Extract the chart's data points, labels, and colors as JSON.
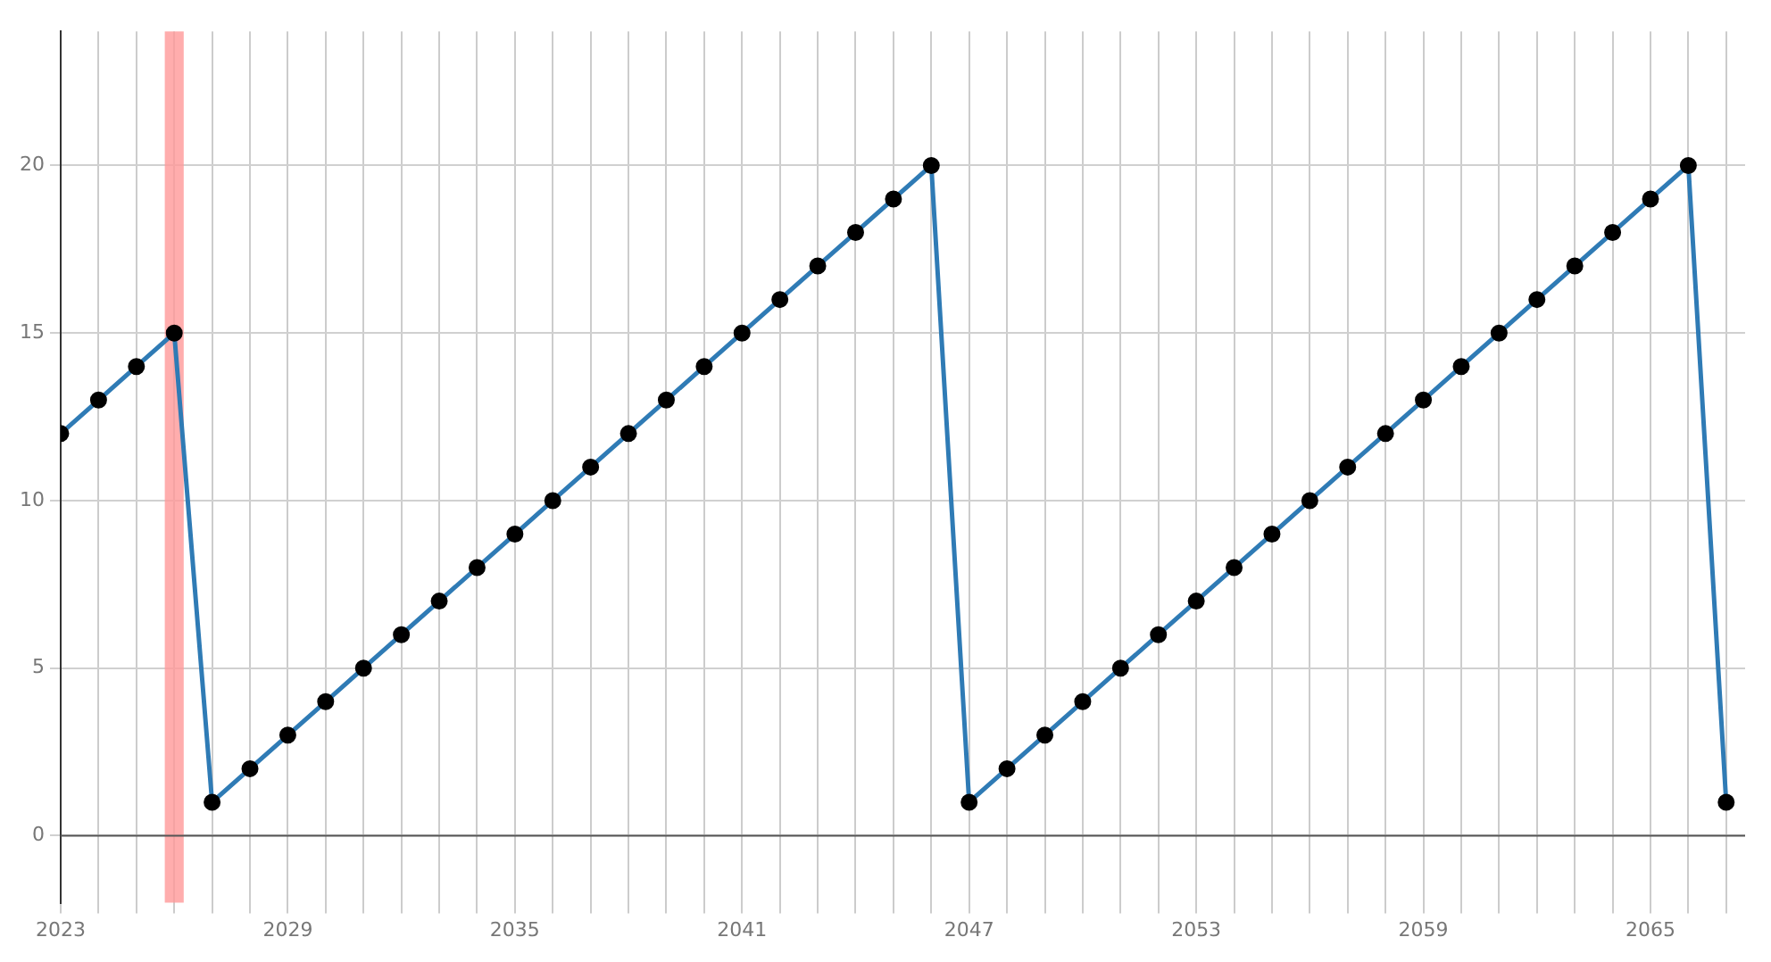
{
  "chart_data": {
    "type": "line",
    "x": [
      2023,
      2024,
      2025,
      2026,
      2027,
      2028,
      2029,
      2030,
      2031,
      2032,
      2033,
      2034,
      2035,
      2036,
      2037,
      2038,
      2039,
      2040,
      2041,
      2042,
      2043,
      2044,
      2045,
      2046,
      2047,
      2048,
      2049,
      2050,
      2051,
      2052,
      2053,
      2054,
      2055,
      2056,
      2057,
      2058,
      2059,
      2060,
      2061,
      2062,
      2063,
      2064,
      2065,
      2066,
      2067
    ],
    "series": [
      {
        "color": "#2f7bb5",
        "values": [
          12,
          13,
          14,
          15,
          1,
          2,
          3,
          4,
          5,
          6,
          7,
          8,
          9,
          10,
          11,
          12,
          13,
          14,
          15,
          16,
          17,
          18,
          19,
          20,
          1,
          2,
          3,
          4,
          5,
          6,
          7,
          8,
          9,
          10,
          11,
          12,
          13,
          14,
          15,
          16,
          17,
          18,
          19,
          20,
          1
        ]
      }
    ],
    "xlim": [
      2023,
      2067.5
    ],
    "xticks": [
      2023,
      {
        "value": 2024,
        "label": null
      },
      {
        "value": 2025,
        "label": null
      },
      {
        "value": 2026,
        "label": null
      },
      {
        "value": 2027,
        "label": null
      },
      {
        "value": 2028,
        "label": null
      },
      2029,
      {
        "value": 2030,
        "label": null
      },
      {
        "value": 2031,
        "label": null
      },
      {
        "value": 2032,
        "label": null
      },
      {
        "value": 2033,
        "label": null
      },
      {
        "value": 2034,
        "label": null
      },
      2035,
      {
        "value": 2036,
        "label": null
      },
      {
        "value": 2037,
        "label": null
      },
      {
        "value": 2038,
        "label": null
      },
      {
        "value": 2039,
        "label": null
      },
      {
        "value": 2040,
        "label": null
      },
      2041,
      {
        "value": 2042,
        "label": null
      },
      {
        "value": 2043,
        "label": null
      },
      {
        "value": 2044,
        "label": null
      },
      {
        "value": 2045,
        "label": null
      },
      {
        "value": 2046,
        "label": null
      },
      2047,
      {
        "value": 2048,
        "label": null
      },
      {
        "value": 2049,
        "label": null
      },
      {
        "value": 2050,
        "label": null
      },
      {
        "value": 2051,
        "label": null
      },
      {
        "value": 2052,
        "label": null
      },
      2053,
      {
        "value": 2054,
        "label": null
      },
      {
        "value": 2055,
        "label": null
      },
      {
        "value": 2056,
        "label": null
      },
      {
        "value": 2057,
        "label": null
      },
      {
        "value": 2058,
        "label": null
      },
      2059,
      {
        "value": 2060,
        "label": null
      },
      {
        "value": 2061,
        "label": null
      },
      {
        "value": 2062,
        "label": null
      },
      {
        "value": 2063,
        "label": null
      },
      {
        "value": 2064,
        "label": null
      },
      2065,
      {
        "value": 2066,
        "label": null
      },
      {
        "value": 2067,
        "label": null
      }
    ],
    "ylim": [
      -2,
      24
    ],
    "yticks": [
      0,
      5,
      10,
      15,
      20
    ],
    "grid": true,
    "marker": "circle",
    "line_style": "solid",
    "ref_lines": [
      {
        "axis": "y",
        "value": 0,
        "color": "#555555"
      }
    ],
    "bands": [
      {
        "axis": "x",
        "from": 2025.75,
        "to": 2026.25,
        "color": "#ff9999"
      }
    ]
  }
}
